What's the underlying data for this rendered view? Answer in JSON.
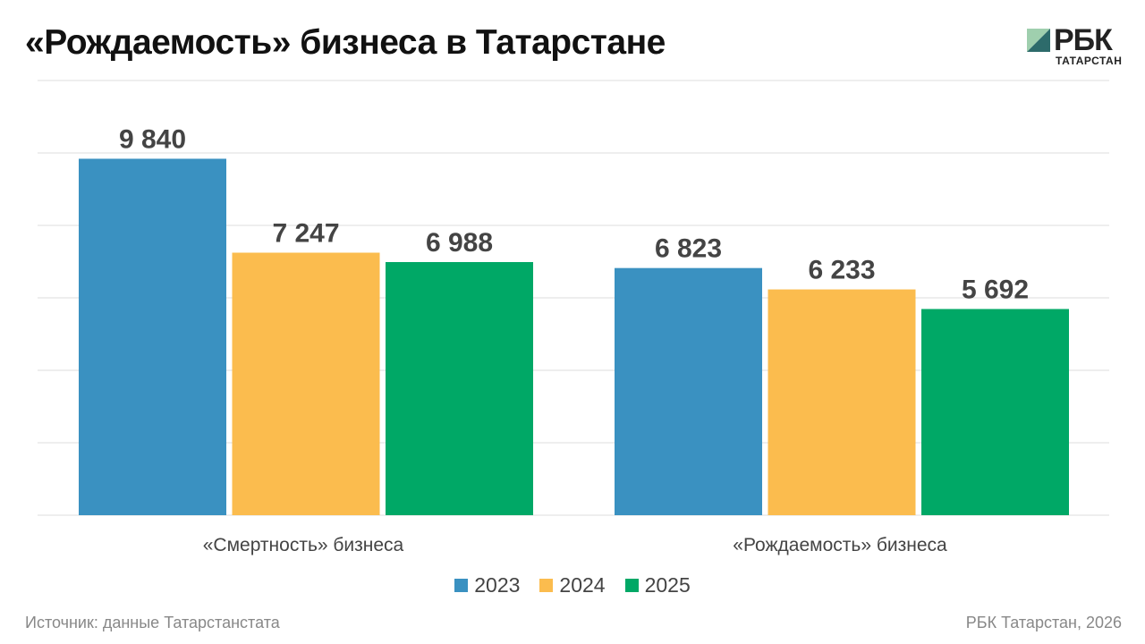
{
  "title": "«Рождаемость» бизнеса в Татарстане",
  "logo": {
    "text": "РБК",
    "subtitle": "ТАТАРСТАН"
  },
  "source": "Источник: данные Татарстанстата",
  "credit": "РБК Татарстан, 2026",
  "chart_data": {
    "type": "bar",
    "title": "«Рождаемость» бизнеса в Татарстане",
    "categories": [
      "«Смертность» бизнеса",
      "«Рождаемость» бизнеса"
    ],
    "series": [
      {
        "name": "2023",
        "color": "#3a91c1",
        "values": [
          9840,
          6823
        ]
      },
      {
        "name": "2024",
        "color": "#fbbc4e",
        "values": [
          7247,
          6233
        ]
      },
      {
        "name": "2025",
        "color": "#00a866",
        "values": [
          6988,
          5692
        ]
      }
    ],
    "data_labels": [
      [
        "9 840",
        "6 823"
      ],
      [
        "7 247",
        "6 233"
      ],
      [
        "6 988",
        "5 692"
      ]
    ],
    "ylim": [
      0,
      12000
    ],
    "grid": true,
    "legend_position": "bottom"
  }
}
